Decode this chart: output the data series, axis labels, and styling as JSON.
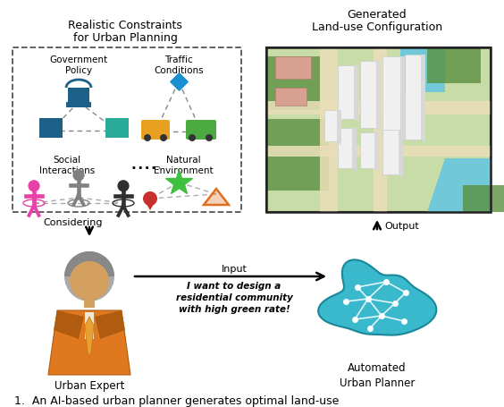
{
  "background_color": "#ffffff",
  "fig_width": 5.64,
  "fig_height": 4.56,
  "dpi": 100,
  "top_left_title": "Realistic Constraints\nfor Urban Planning",
  "top_right_title": "Generated\nLand-use Configuration",
  "considering_text": "Considering",
  "output_text": "Output",
  "input_text": "Input",
  "input_italic": "I want to design a\nresidential community\nwith high green rate!",
  "urban_expert_text": "Urban Expert",
  "automated_planner_text": "Automated\nUrban Planner",
  "caption": "1.  An AI-based urban planner generates optimal land-use",
  "colors": {
    "gov_blue": "#1c5f87",
    "gov_teal": "#2aab9a",
    "traffic_blue": "#1a8fd1",
    "traffic_orange": "#e8a020",
    "traffic_green": "#4aaa40",
    "social_pink": "#e840a8",
    "social_gray": "#808080",
    "social_dark": "#303030",
    "nat_green": "#40c040",
    "nat_red": "#c83030",
    "nat_orange": "#e07020",
    "dash_box": "#555555",
    "brain_teal": "#3ab8cc",
    "brain_dark": "#1a8898",
    "suit_orange": "#e07820",
    "suit_dark": "#b05c10",
    "skin": "#d4a060",
    "hair": "#888888"
  }
}
